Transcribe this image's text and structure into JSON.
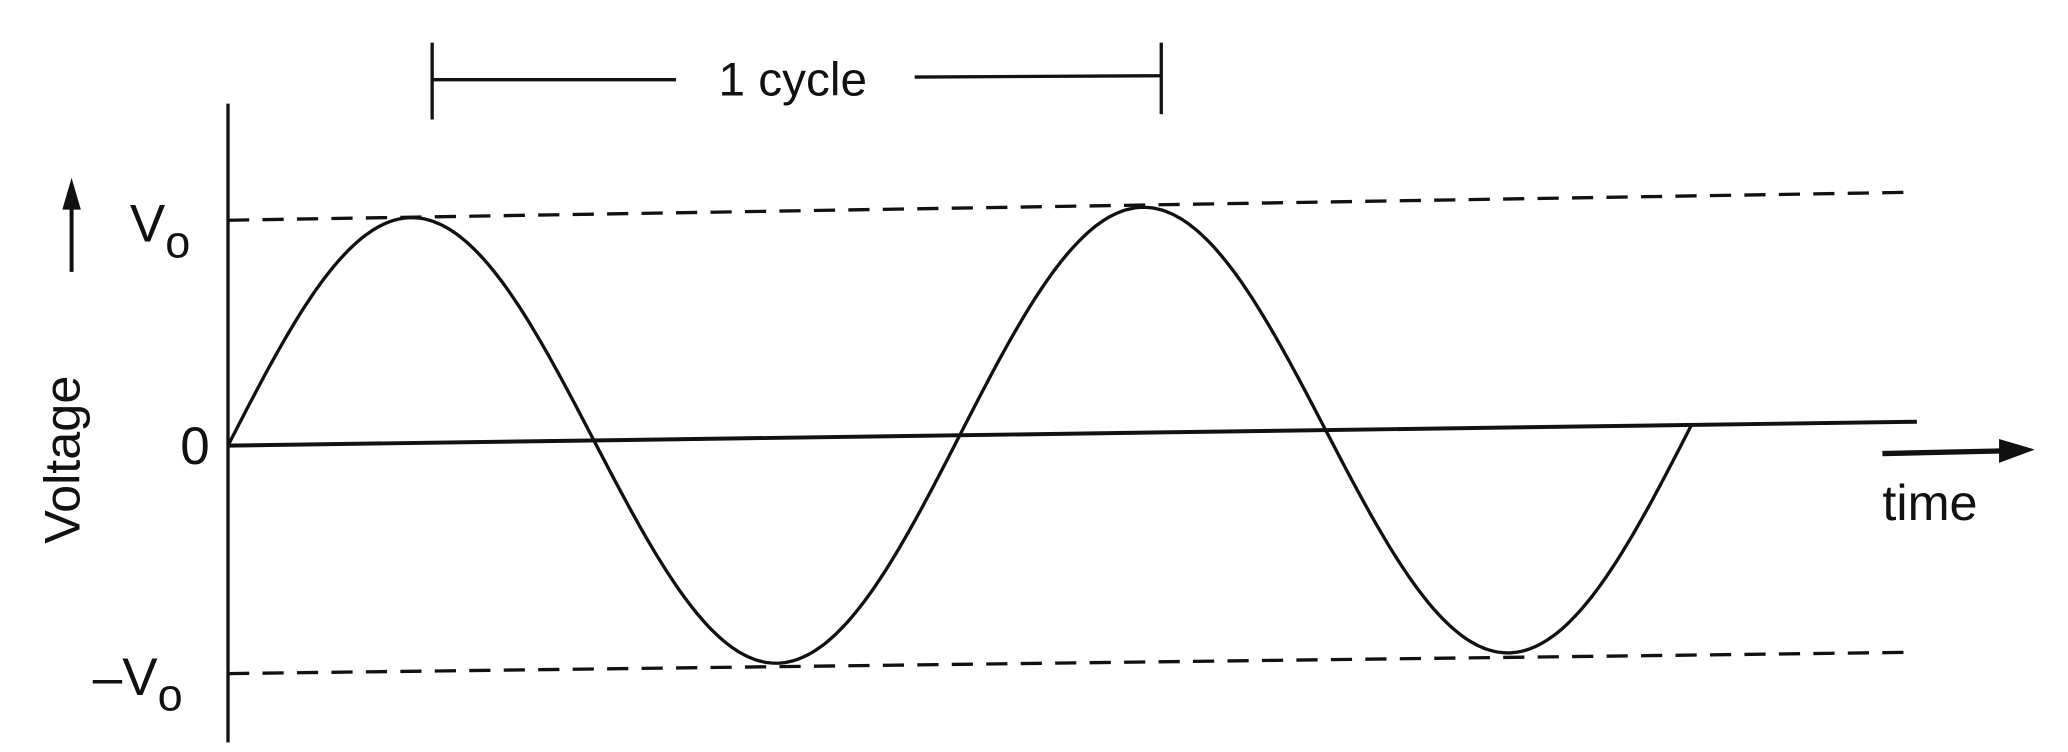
{
  "diagram": {
    "cycle_label": "1 cycle",
    "y_axis_label": "Voltage",
    "x_axis_label": "time",
    "levels": {
      "top": "V",
      "top_sub": "o",
      "zero": "0",
      "bottom": "–V",
      "bottom_sub": "o"
    },
    "waveform": "sine",
    "cycles_shown": 2,
    "line_color": "#111111"
  }
}
